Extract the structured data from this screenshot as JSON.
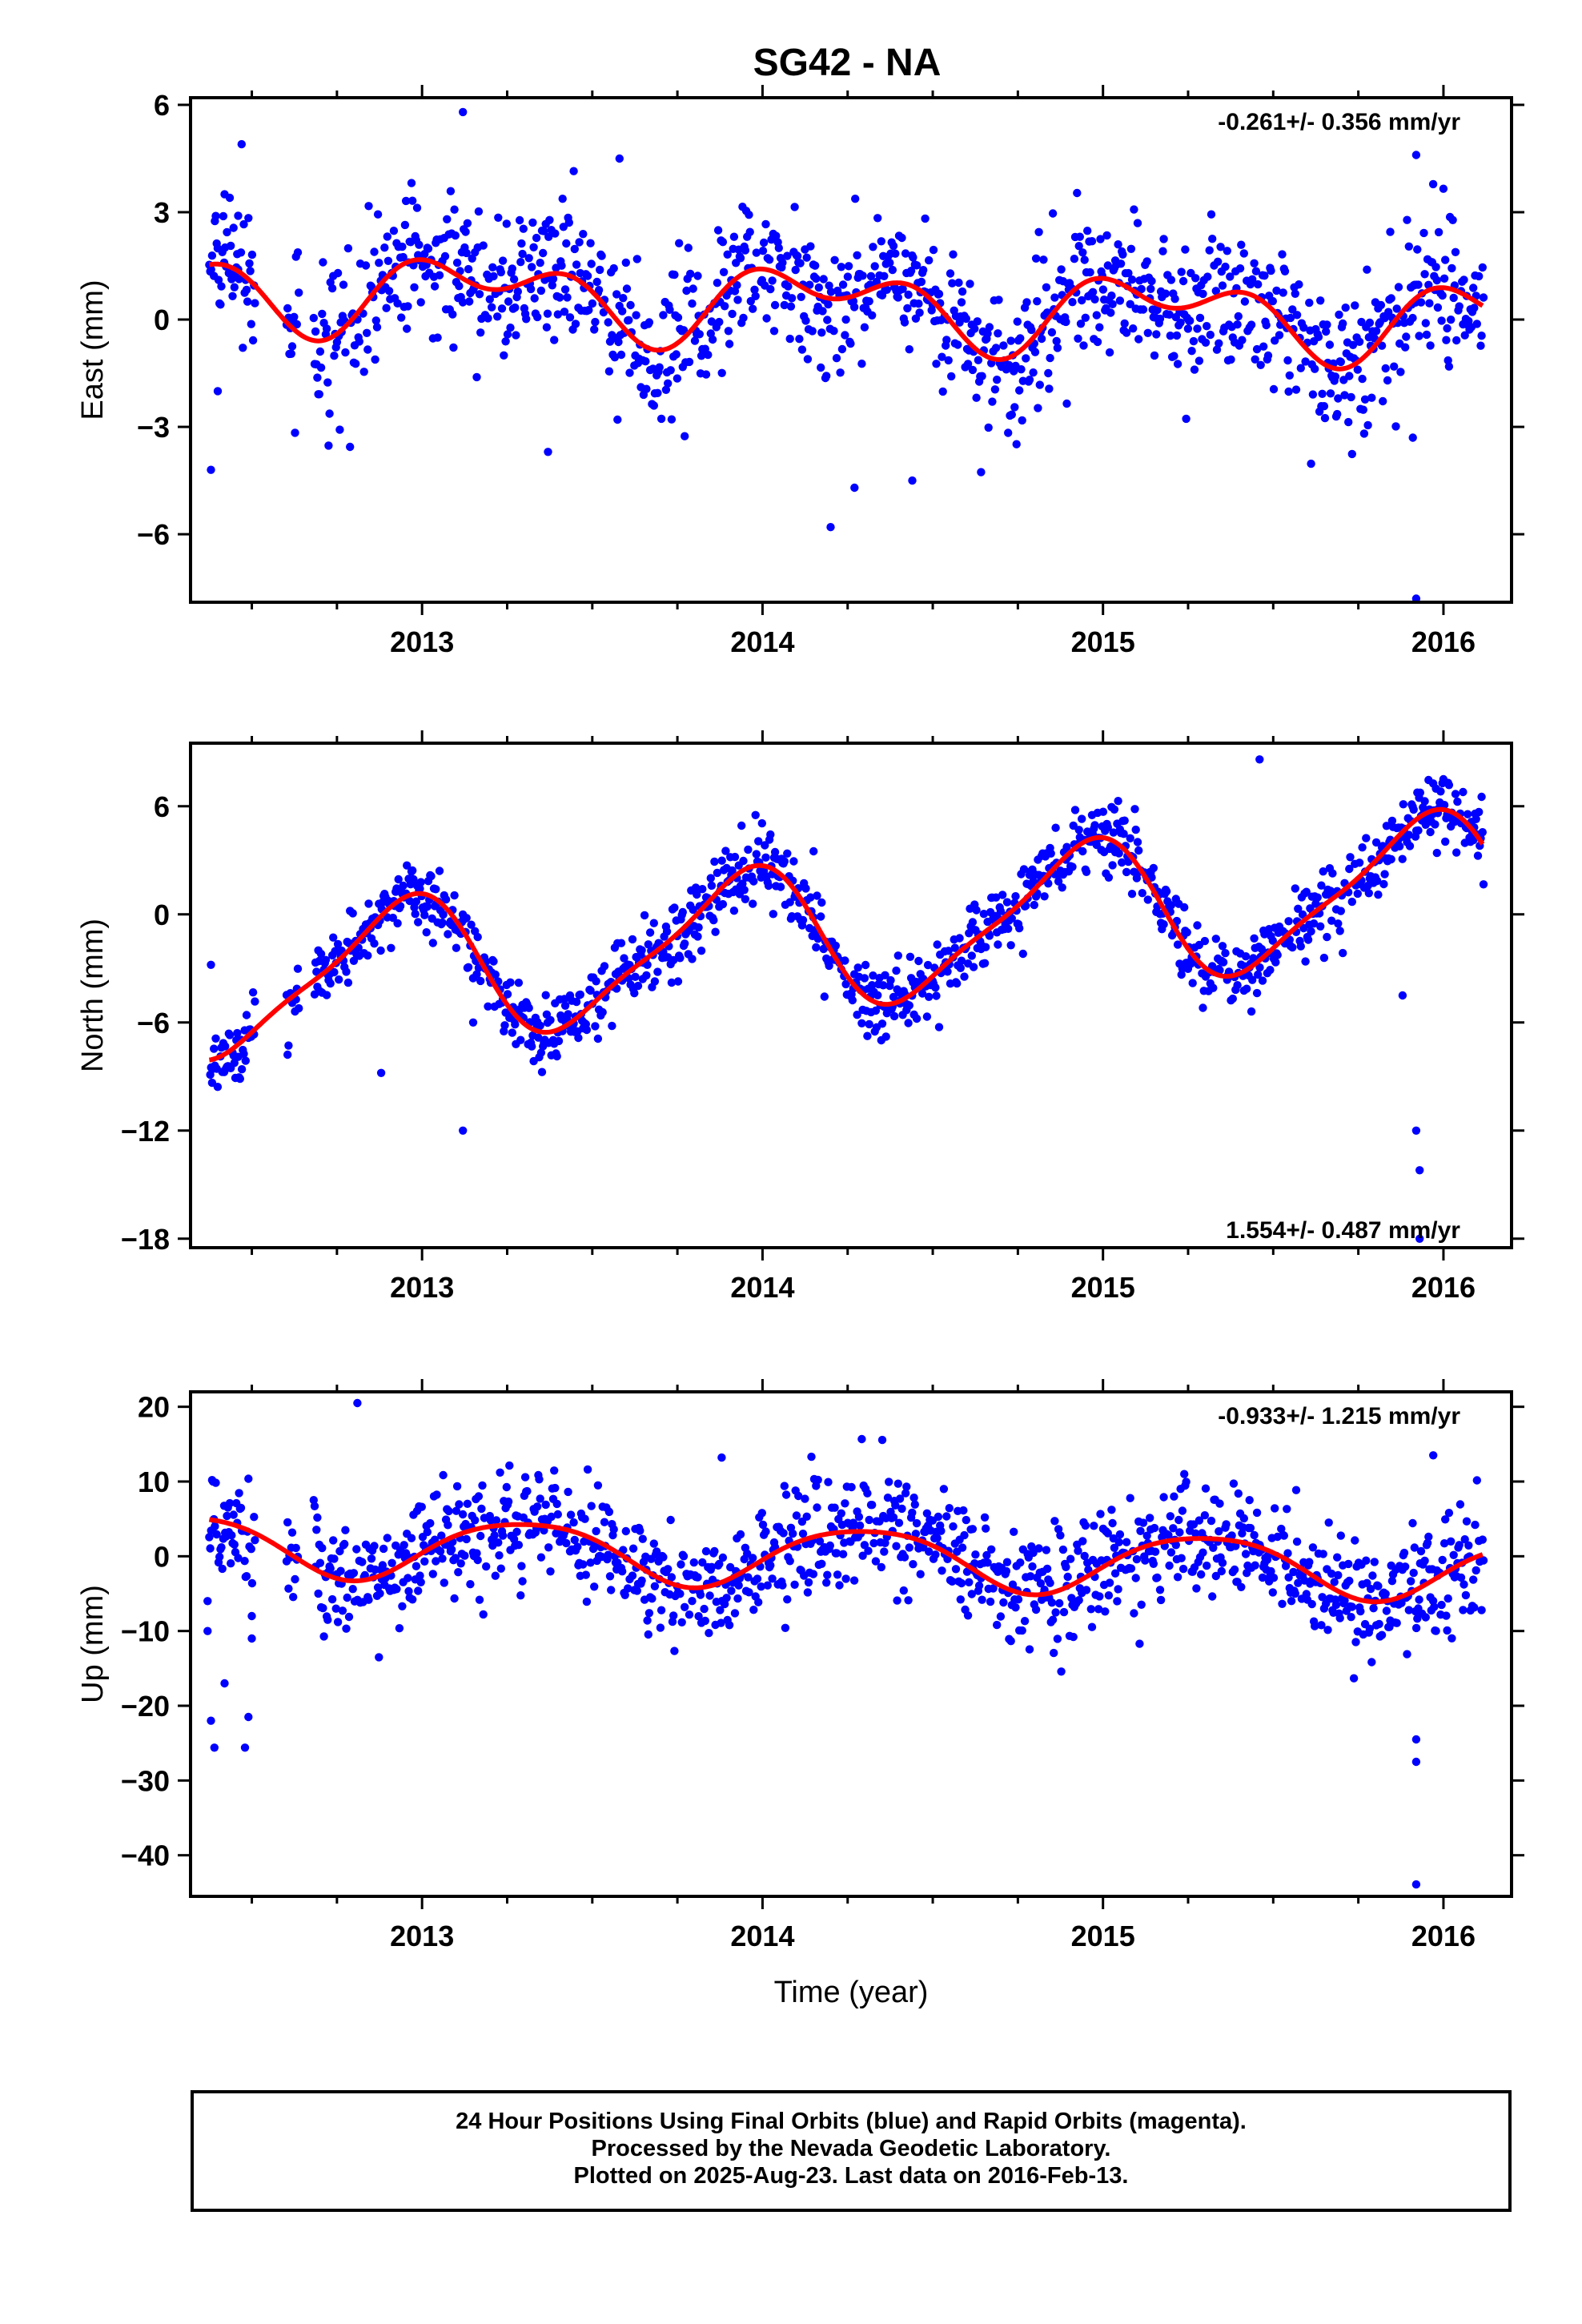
{
  "title": "SG42 - NA",
  "footer": {
    "line1": "24 Hour Positions Using Final Orbits (blue) and Rapid Orbits (magenta).",
    "line2": "Processed by the Nevada Geodetic Laboratory.",
    "line3": "Plotted on 2025-Aug-23. Last data on 2016-Feb-13."
  },
  "colors": {
    "points": "#0000ff",
    "fit": "#ff0000",
    "axis": "#000000"
  },
  "chart_data": [
    {
      "type": "scatter",
      "ylabel": "East (mm)",
      "xlabel": "",
      "rate_text": "-0.261+/- 0.356 mm/yr",
      "rate_position": "top-right",
      "xlim": [
        2012.32,
        2016.2
      ],
      "ylim": [
        -7.9,
        6.2
      ],
      "xticks": [
        2013,
        2014,
        2015,
        2016
      ],
      "xtick_labels": [
        "2013",
        "2014",
        "2015",
        "2016"
      ],
      "yticks": [
        6,
        3,
        0,
        -3,
        -6
      ],
      "ytick_labels": [
        "6",
        "3",
        "0",
        "−3",
        "−6"
      ],
      "trend": {
        "rate": -0.261,
        "offset": 0.45
      },
      "seasonal": {
        "a1": 0.8,
        "p1": 0.5,
        "a2": 0.65,
        "p2": 2.2
      },
      "scatter_sd": 1.0,
      "outliers": [
        [
          2012.38,
          -4.2
        ],
        [
          2012.42,
          3.5
        ],
        [
          2012.47,
          4.9
        ],
        [
          2012.46,
          2.9
        ],
        [
          2013.12,
          5.8
        ],
        [
          2013.58,
          4.5
        ],
        [
          2014.2,
          -5.8
        ],
        [
          2014.27,
          -4.7
        ],
        [
          2014.44,
          -4.5
        ],
        [
          2015.92,
          -7.8
        ],
        [
          2015.92,
          4.6
        ],
        [
          2015.91,
          -3.3
        ],
        [
          2013.37,
          -3.7
        ],
        [
          2012.4,
          -2.0
        ]
      ]
    },
    {
      "type": "scatter",
      "ylabel": "North (mm)",
      "xlabel": "",
      "rate_text": "1.554+/- 0.487 mm/yr",
      "rate_position": "bottom-right",
      "xlim": [
        2012.32,
        2016.2
      ],
      "ylim": [
        -18.5,
        9.5
      ],
      "xticks": [
        2013,
        2014,
        2015,
        2016
      ],
      "xtick_labels": [
        "2013",
        "2014",
        "2015",
        "2016"
      ],
      "yticks": [
        6,
        0,
        -6,
        -12,
        -18
      ],
      "ytick_labels": [
        "6",
        "0",
        "−6",
        "−12",
        "−18"
      ],
      "trend": {
        "rate": 1.554,
        "offset": -1.2
      },
      "seasonal": {
        "a1": 3.8,
        "p1": 2.0,
        "a2": 0.9,
        "p2": 1.0
      },
      "scatter_sd": 1.0,
      "outliers": [
        [
          2012.88,
          -8.8
        ],
        [
          2013.12,
          -12.0
        ],
        [
          2013.15,
          -6.0
        ],
        [
          2012.38,
          -2.8
        ],
        [
          2014.15,
          3.5
        ],
        [
          2015.46,
          8.6
        ],
        [
          2015.92,
          -12.0
        ],
        [
          2015.93,
          -14.2
        ],
        [
          2015.93,
          -18.0
        ],
        [
          2015.88,
          -4.5
        ]
      ]
    },
    {
      "type": "scatter",
      "ylabel": "Up (mm)",
      "xlabel": "Time (year)",
      "rate_text": "-0.933+/- 1.215 mm/yr",
      "rate_position": "top-right",
      "xlim": [
        2012.32,
        2016.2
      ],
      "ylim": [
        -45.5,
        22.0
      ],
      "xticks": [
        2013,
        2014,
        2015,
        2016
      ],
      "xtick_labels": [
        "2013",
        "2014",
        "2015",
        "2016"
      ],
      "yticks": [
        20,
        10,
        0,
        -10,
        -20,
        -30,
        -40
      ],
      "ytick_labels": [
        "20",
        "10",
        "0",
        "−10",
        "−20",
        "−30",
        "−40"
      ],
      "trend": {
        "rate": -0.933,
        "offset": 0.0
      },
      "seasonal": {
        "a1": 4.0,
        "p1": -0.3,
        "a2": 0.6,
        "p2": 1.0
      },
      "scatter_sd": 3.8,
      "outliers": [
        [
          2012.38,
          -22.0
        ],
        [
          2012.39,
          -25.6
        ],
        [
          2012.42,
          -17.0
        ],
        [
          2012.48,
          -25.6
        ],
        [
          2012.49,
          -21.5
        ],
        [
          2012.5,
          -11.0
        ],
        [
          2012.5,
          -8.0
        ],
        [
          2012.81,
          20.5
        ],
        [
          2013.88,
          13.2
        ],
        [
          2015.92,
          -24.5
        ],
        [
          2015.92,
          -27.5
        ],
        [
          2015.92,
          -43.9
        ],
        [
          2015.97,
          13.5
        ],
        [
          2012.37,
          -10.0
        ],
        [
          2012.37,
          -6.0
        ]
      ]
    }
  ]
}
